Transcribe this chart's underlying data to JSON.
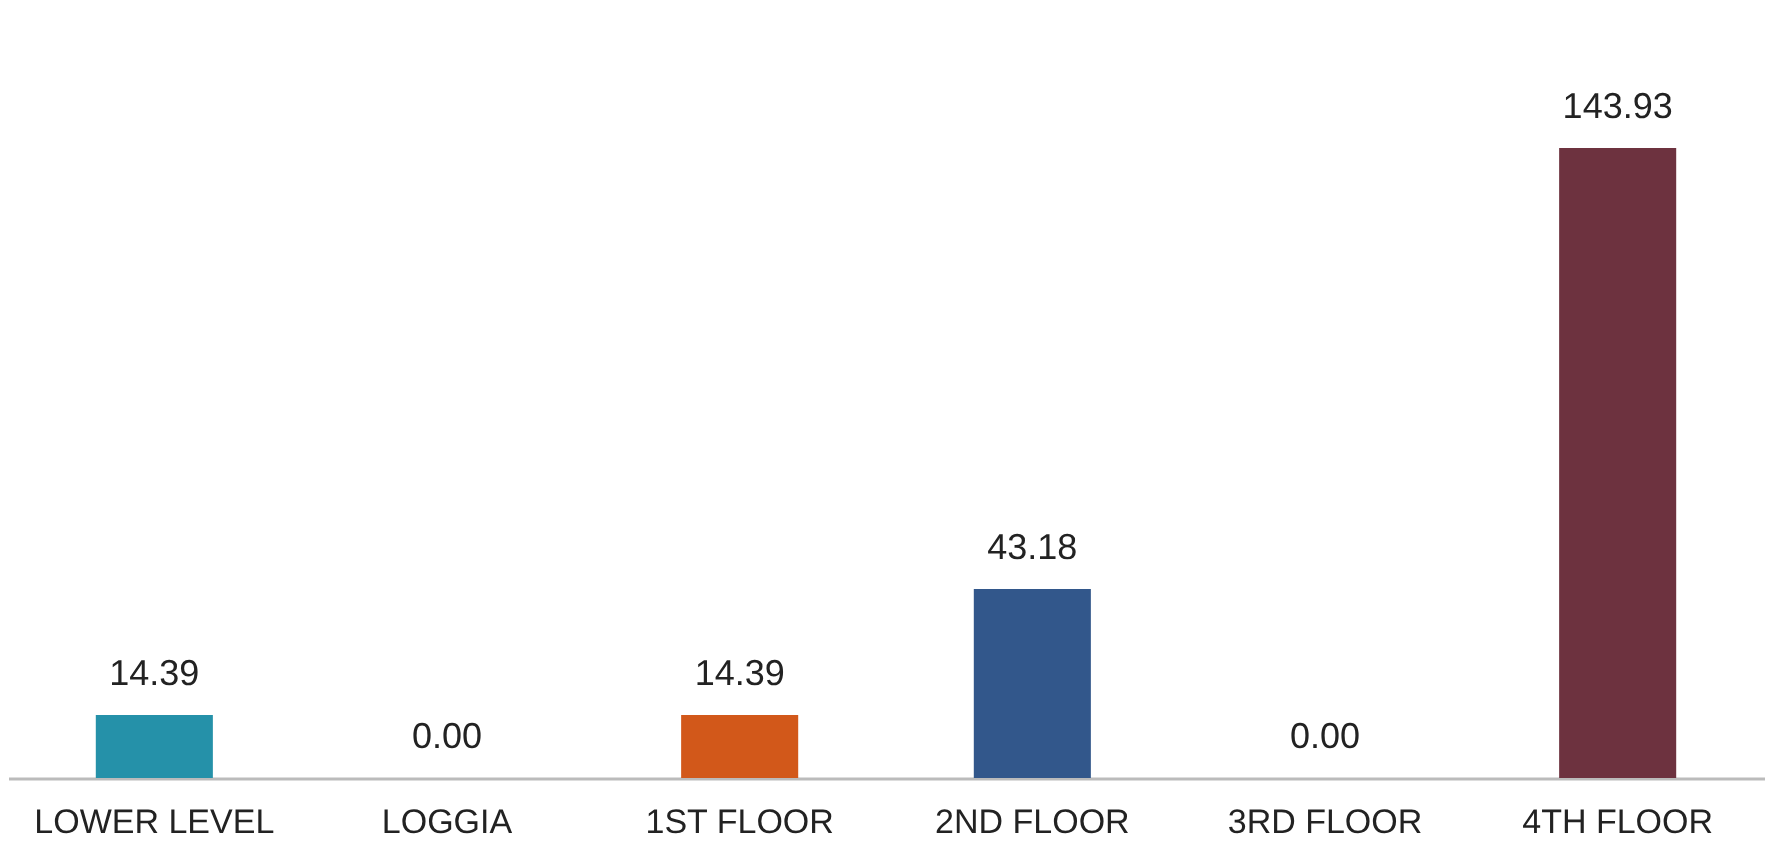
{
  "chart_data": {
    "type": "bar",
    "categories": [
      "LOWER LEVEL",
      "LOGGIA",
      "1ST FLOOR",
      "2ND FLOOR",
      "3RD FLOOR",
      "4TH FLOOR"
    ],
    "values": [
      14.39,
      0.0,
      14.39,
      43.18,
      0.0,
      143.93
    ],
    "colors": [
      "#2591a9",
      "#7f7f7f",
      "#d2581a",
      "#32578b",
      "#7f7f7f",
      "#6d323f"
    ],
    "data_labels": true,
    "value_labels": [
      "14.39",
      "0.00",
      "14.39",
      "43.18",
      "0.00",
      "143.93"
    ],
    "tick_labels": "x"
  }
}
